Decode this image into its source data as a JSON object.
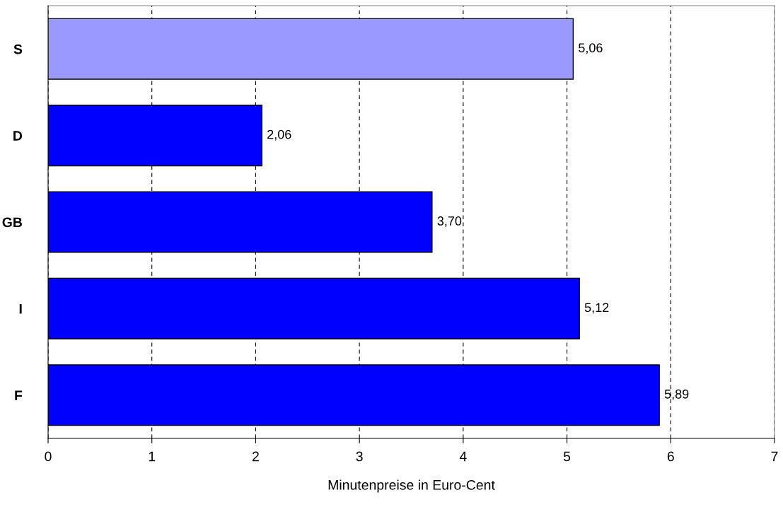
{
  "chart_data": {
    "type": "bar",
    "orientation": "horizontal",
    "categories": [
      "S",
      "D",
      "GB",
      "I",
      "F"
    ],
    "values": [
      5.06,
      2.06,
      3.7,
      5.12,
      5.89
    ],
    "colors": [
      "#9999ff",
      "#0000ff",
      "#0000ff",
      "#0000ff",
      "#0000ff"
    ],
    "value_labels": [
      "5,06",
      "2,06",
      "3,70",
      "5,12",
      "5,89"
    ],
    "xlabel": "Minutenpreise in Euro-Cent",
    "xlim": [
      0,
      7
    ],
    "xticks": [
      0,
      1,
      2,
      3,
      4,
      5,
      6,
      7
    ],
    "grid": "x"
  }
}
